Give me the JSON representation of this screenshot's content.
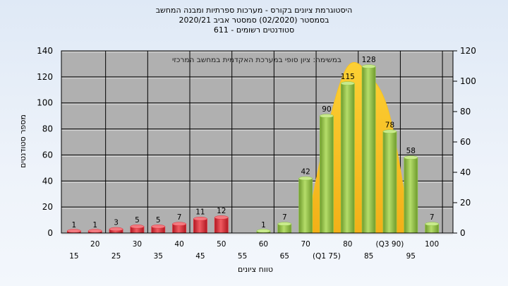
{
  "chart_data": {
    "type": "bar",
    "title_lines": [
      "היסטוגרמת ציונים בקורס - מערכות ספרתיות ומבנה המחשב",
      "בסמסטר  (02/2020)  סמסטר אביב 2020/21",
      "611 - סטודנטים רשומים"
    ],
    "annotation": "במשימה: ציון סופי במערכת האקדמית במחשב המרכזי",
    "xlabel": "טווח ציונים",
    "ylabel": "מספר סטודנטים",
    "ylim": [
      0,
      140
    ],
    "y_ticks_left": [
      0,
      20,
      40,
      60,
      80,
      100,
      120,
      140
    ],
    "y2lim": [
      0,
      120
    ],
    "y_ticks_right": [
      0,
      20,
      40,
      60,
      80,
      100,
      120
    ],
    "x_ticks_upper": [
      "20",
      "30",
      "40",
      "50",
      "60",
      "70",
      "80",
      "(Q3 90)",
      "100"
    ],
    "x_ticks_lower": [
      "15",
      "25",
      "35",
      "45",
      "55",
      "65",
      "(Q1 75)",
      "85",
      "95"
    ],
    "categories": [
      "15",
      "20",
      "25",
      "30",
      "35",
      "40",
      "45",
      "50",
      "55",
      "60",
      "65",
      "70",
      "75",
      "80",
      "85",
      "90",
      "95",
      "100"
    ],
    "values": [
      1,
      1,
      3,
      5,
      5,
      7,
      11,
      12,
      0,
      1,
      7,
      42,
      90,
      115,
      128,
      78,
      58,
      7
    ],
    "value_labels": [
      "1",
      "1",
      "3",
      "5",
      "5",
      "7",
      "11",
      "12",
      "",
      "1",
      "7",
      "42",
      "90",
      "115",
      "128",
      "78",
      "58",
      "7"
    ],
    "fail_color": "#e0303a",
    "pass_color": "#8cc043",
    "area_color": "#f8c21e",
    "plot_background": "#b0b0b0",
    "grid": true,
    "area_series": [
      {
        "x": "70",
        "y": 0
      },
      {
        "x": "75",
        "y": 78
      },
      {
        "x": "80",
        "y": 128
      },
      {
        "x": "85",
        "y": 122
      },
      {
        "x": "90",
        "y": 90
      },
      {
        "x": "95",
        "y": 0
      }
    ]
  }
}
